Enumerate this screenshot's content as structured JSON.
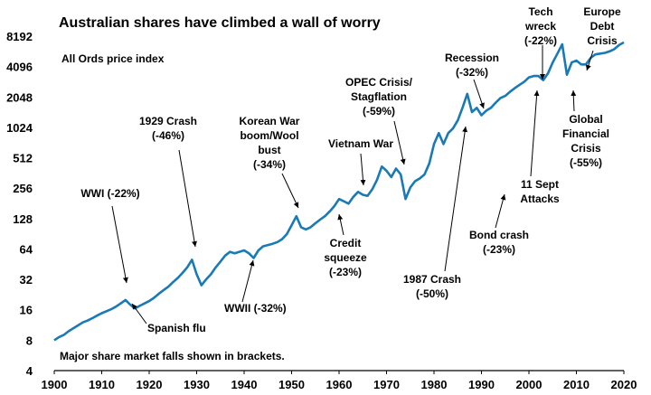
{
  "chart_data": {
    "type": "line",
    "title": "Australian shares have climbed a wall of worry",
    "subtitle": "All Ords price index",
    "note": "Major share market falls shown in brackets.",
    "y_scale": "log2",
    "xlim": [
      1900,
      2020
    ],
    "ylim": [
      4,
      8192
    ],
    "x_ticks": [
      "1900",
      "1910",
      "1920",
      "1930",
      "1940",
      "1950",
      "1960",
      "1970",
      "1980",
      "1990",
      "2000",
      "2010",
      "2020"
    ],
    "y_ticks": [
      "4",
      "8",
      "16",
      "32",
      "64",
      "128",
      "256",
      "512",
      "1024",
      "2048",
      "4096",
      "8192"
    ],
    "line_color": "#1a7ab5",
    "series": [
      {
        "x": [
          1900,
          1901,
          1902,
          1903,
          1904,
          1905,
          1906,
          1907,
          1908,
          1909,
          1910,
          1911,
          1912,
          1913,
          1914,
          1915,
          1916,
          1917,
          1918,
          1919,
          1920,
          1921,
          1922,
          1923,
          1924,
          1925,
          1926,
          1927,
          1928,
          1929,
          1930,
          1931,
          1932,
          1933,
          1934,
          1935,
          1936,
          1937,
          1938,
          1939,
          1940,
          1941,
          1942,
          1943,
          1944,
          1945,
          1946,
          1947,
          1948,
          1949,
          1950,
          1951,
          1952,
          1953,
          1954,
          1955,
          1956,
          1957,
          1958,
          1959,
          1960,
          1961,
          1962,
          1963,
          1964,
          1965,
          1966,
          1967,
          1968,
          1969,
          1970,
          1971,
          1972,
          1973,
          1974,
          1975,
          1976,
          1977,
          1978,
          1979,
          1980,
          1981,
          1982,
          1983,
          1984,
          1985,
          1986,
          1987,
          1988,
          1989,
          1990,
          1991,
          1992,
          1993,
          1994,
          1995,
          1996,
          1997,
          1998,
          1999,
          2000,
          2001,
          2002,
          2003,
          2004,
          2005,
          2006,
          2007,
          2008,
          2009,
          2010,
          2011,
          2012,
          2013,
          2014,
          2015,
          2016,
          2017,
          2018,
          2019,
          2020
        ],
        "values": [
          8,
          8.6,
          9,
          9.8,
          10.5,
          11.2,
          12,
          12.5,
          13.2,
          14,
          14.8,
          15.5,
          16.2,
          17.2,
          18.5,
          20,
          18,
          16.5,
          17.5,
          18.5,
          19.5,
          21,
          23,
          25,
          27,
          30,
          33,
          37,
          42,
          50,
          36,
          28,
          32,
          36,
          42,
          48,
          55,
          60,
          58,
          60,
          62,
          58,
          52,
          62,
          68,
          70,
          72,
          75,
          80,
          90,
          110,
          135,
          105,
          100,
          105,
          115,
          125,
          135,
          150,
          170,
          200,
          190,
          180,
          210,
          235,
          220,
          215,
          250,
          310,
          420,
          380,
          330,
          400,
          350,
          200,
          260,
          300,
          320,
          350,
          450,
          700,
          900,
          700,
          900,
          1000,
          1200,
          1600,
          2200,
          1450,
          1600,
          1350,
          1500,
          1600,
          1800,
          2000,
          2100,
          2300,
          2500,
          2700,
          2900,
          3200,
          3300,
          3300,
          3000,
          3500,
          4500,
          5500,
          6800,
          3400,
          4500,
          4700,
          4300,
          4300,
          5000,
          5400,
          5500,
          5600,
          5800,
          6100,
          6700,
          7100
        ]
      }
    ],
    "annotations": [
      {
        "lines": [
          "WWI (-22%)"
        ],
        "x": 1915,
        "y": 20
      },
      {
        "lines": [
          "Spanish flu"
        ],
        "x": 1918,
        "y": 17
      },
      {
        "lines": [
          "1929 Crash",
          "(-46%)"
        ],
        "x": 1929,
        "y": 50
      },
      {
        "lines": [
          "WWII (-32%)"
        ],
        "x": 1942,
        "y": 55
      },
      {
        "lines": [
          "Korean War",
          "boom/Wool",
          "bust",
          "(-34%)"
        ],
        "x": 1951,
        "y": 135
      },
      {
        "lines": [
          "Credit",
          "squeeze",
          "(-23%)"
        ],
        "x": 1961,
        "y": 190
      },
      {
        "lines": [
          "Vietnam War"
        ],
        "x": 1966,
        "y": 220
      },
      {
        "lines": [
          "OPEC Crisis/",
          "Stagflation",
          "(-59%)"
        ],
        "x": 1973,
        "y": 420
      },
      {
        "lines": [
          "1987 Crash",
          "(-50%)"
        ],
        "x": 1988,
        "y": 1450
      },
      {
        "lines": [
          "Recession",
          "(-32%)"
        ],
        "x": 1990,
        "y": 1350
      },
      {
        "lines": [
          "Bond crash",
          "(-23%)"
        ],
        "x": 1994,
        "y": 1800
      },
      {
        "lines": [
          "11 Sept",
          "Attacks"
        ],
        "x": 2001,
        "y": 3000
      },
      {
        "lines": [
          "Tech",
          "wreck",
          "(-22%)"
        ],
        "x": 2001,
        "y": 3200
      },
      {
        "lines": [
          "Global",
          "Financial",
          "Crisis",
          "(-55%)"
        ],
        "x": 2009,
        "y": 3400
      },
      {
        "lines": [
          "Europe",
          "Debt",
          "Crisis"
        ],
        "x": 2011,
        "y": 4300
      }
    ]
  }
}
